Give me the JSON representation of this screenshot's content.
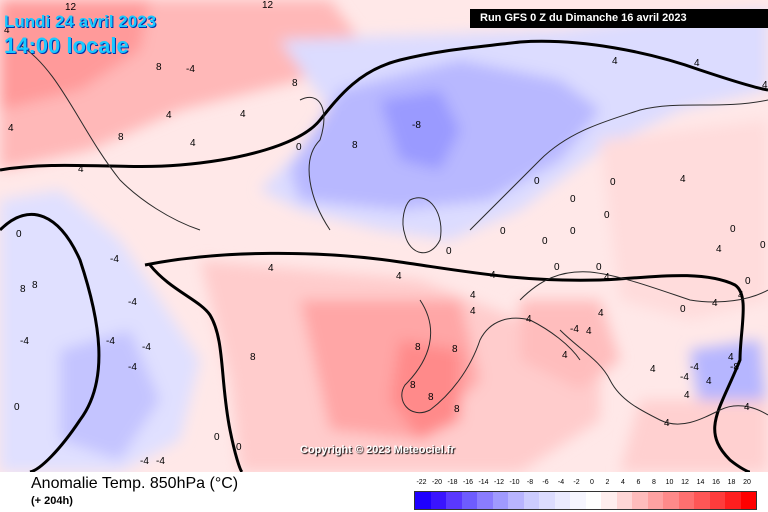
{
  "header": {
    "valid_date": "Lundi 24 avril 2023",
    "local_time": "14:00 locale",
    "run_info": "Run GFS 0 Z du Dimanche 16 avril 2023"
  },
  "copyright": "Copyright © 2023 Meteociel.fr",
  "legend": {
    "title": "Anomalie Temp. 850hPa (°C)",
    "lead_time": "(+ 204h)",
    "scale_values": [
      "-22",
      "-20",
      "-18",
      "-16",
      "-14",
      "-12",
      "-10",
      "-8",
      "-6",
      "-4",
      "-2",
      "0",
      "2",
      "4",
      "6",
      "8",
      "10",
      "12",
      "14",
      "16",
      "18",
      "20"
    ],
    "scale_colors": [
      "#1e00ff",
      "#3a14ff",
      "#5a38ff",
      "#6e5cff",
      "#8a7cff",
      "#a09aff",
      "#b8b4ff",
      "#ccccff",
      "#dcdcff",
      "#eaeaff",
      "#f6f6ff",
      "#ffffff",
      "#ffeeee",
      "#ffd6d6",
      "#ffbcbc",
      "#ffa2a2",
      "#ff8a8a",
      "#ff7070",
      "#ff5656",
      "#ff3c3c",
      "#ff1f1f",
      "#ff0000"
    ]
  },
  "map_labels": [
    "12",
    "12",
    "8",
    "8",
    "8",
    "8",
    "8",
    "4",
    "4",
    "4",
    "4",
    "4",
    "4",
    "4",
    "4",
    "4",
    "4",
    "4",
    "4",
    "4",
    "4",
    "4",
    "4",
    "4",
    "4",
    "4",
    "4",
    "4",
    "4",
    "4",
    "4",
    "4",
    "4",
    "4",
    "4",
    "4",
    "0",
    "0",
    "0",
    "0",
    "0",
    "0",
    "0",
    "0",
    "0",
    "0",
    "0",
    "0",
    "0",
    "0",
    "0",
    "0",
    "0",
    "0",
    "0",
    "-4",
    "-4",
    "-4",
    "-4",
    "-4",
    "-4",
    "-4",
    "-4",
    "-4",
    "-4",
    "-4",
    "-4",
    "-8",
    "-8",
    "8",
    "8",
    "8",
    "8",
    "8",
    "8",
    "8"
  ]
}
